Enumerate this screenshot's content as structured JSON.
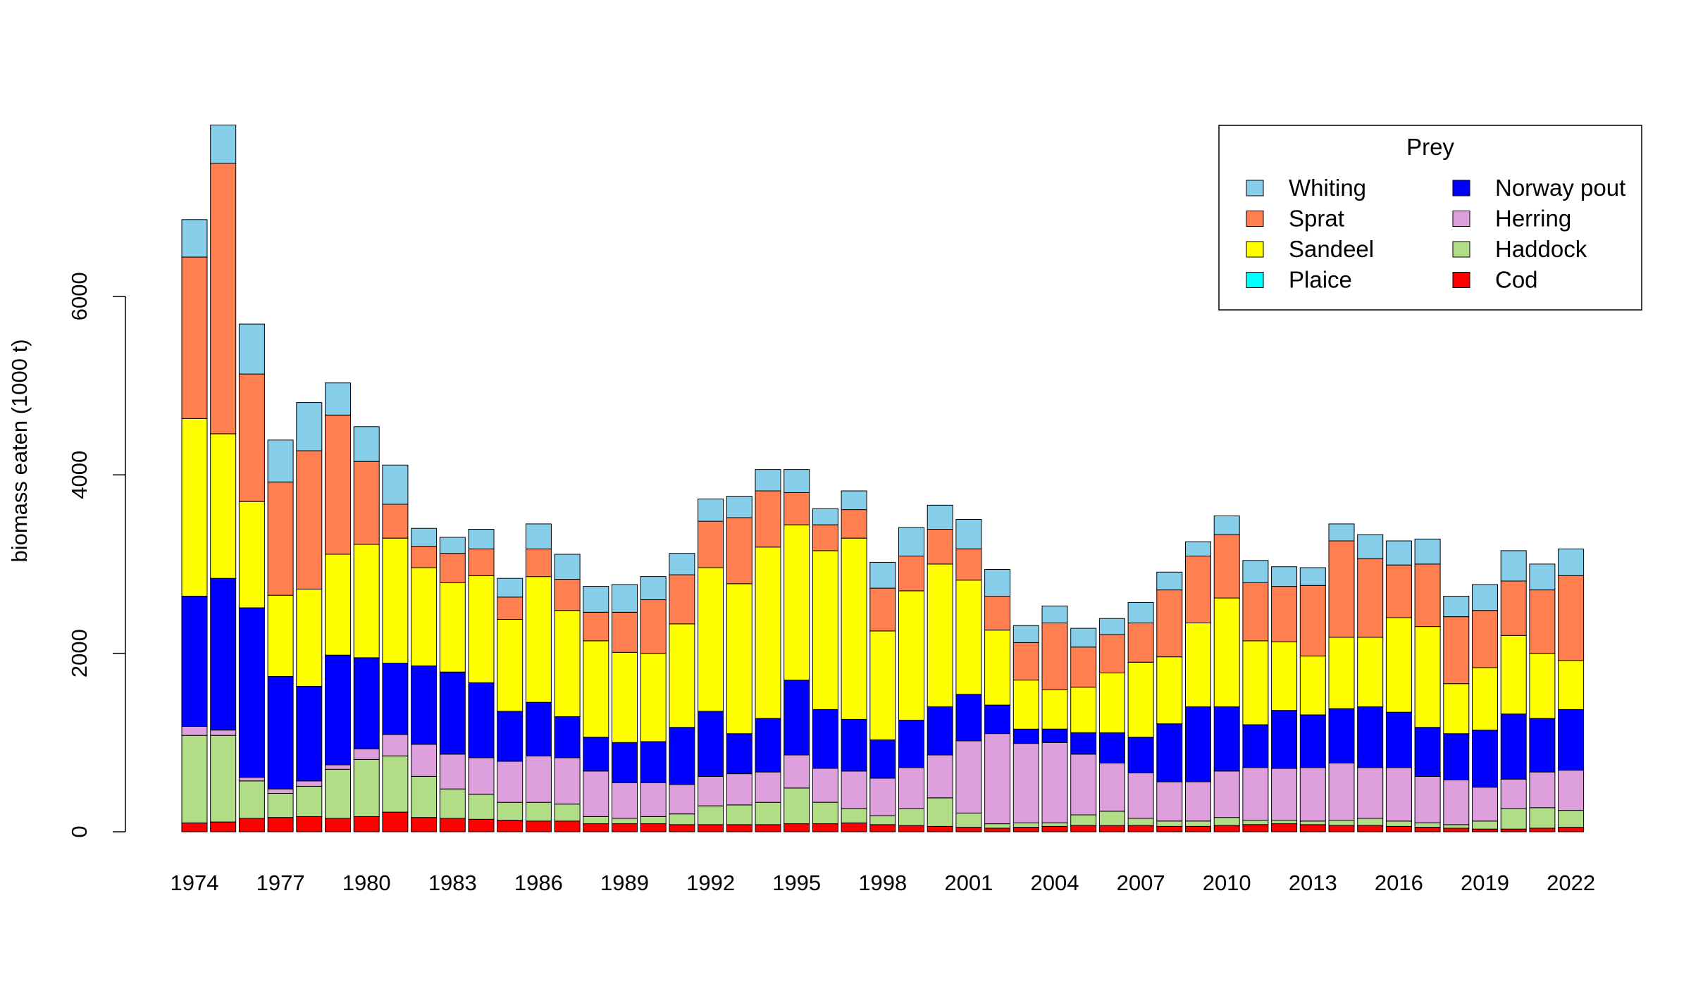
{
  "chart_data": {
    "type": "bar",
    "stacked": true,
    "ylabel": "biomass eaten (1000 t)",
    "ylim": [
      0,
      8000
    ],
    "yticks": [
      0,
      2000,
      4000,
      6000
    ],
    "legend": {
      "title": "Prey",
      "position": "top-right",
      "columns": 2
    },
    "x": [
      1974,
      1975,
      1976,
      1977,
      1978,
      1979,
      1980,
      1981,
      1982,
      1983,
      1984,
      1985,
      1986,
      1987,
      1988,
      1989,
      1990,
      1991,
      1992,
      1993,
      1994,
      1995,
      1996,
      1997,
      1998,
      1999,
      2000,
      2001,
      2002,
      2003,
      2004,
      2005,
      2006,
      2007,
      2008,
      2009,
      2010,
      2011,
      2012,
      2013,
      2014,
      2015,
      2016,
      2017,
      2018,
      2019,
      2020,
      2021,
      2022
    ],
    "xticks_shown": [
      1974,
      1977,
      1980,
      1983,
      1986,
      1989,
      1992,
      1995,
      1998,
      2001,
      2004,
      2007,
      2010,
      2013,
      2016,
      2019,
      2022
    ],
    "series": [
      {
        "name": "Cod",
        "color": "#ff0000",
        "values": [
          100,
          110,
          150,
          160,
          170,
          150,
          170,
          220,
          160,
          150,
          140,
          130,
          120,
          120,
          90,
          90,
          90,
          80,
          80,
          80,
          80,
          90,
          90,
          100,
          80,
          70,
          60,
          50,
          40,
          50,
          60,
          70,
          70,
          70,
          60,
          60,
          70,
          80,
          90,
          80,
          70,
          70,
          60,
          50,
          40,
          30,
          30,
          40,
          50
        ]
      },
      {
        "name": "Haddock",
        "color": "#b0dd86",
        "values": [
          980,
          970,
          420,
          270,
          340,
          550,
          640,
          630,
          460,
          330,
          280,
          200,
          210,
          190,
          80,
          60,
          80,
          120,
          210,
          220,
          250,
          400,
          240,
          160,
          100,
          190,
          320,
          160,
          50,
          50,
          40,
          120,
          160,
          80,
          60,
          60,
          90,
          50,
          40,
          40,
          60,
          80,
          60,
          50,
          40,
          90,
          230,
          230,
          190
        ]
      },
      {
        "name": "Plaice",
        "color": "#00ffff",
        "values": [
          0,
          0,
          0,
          0,
          0,
          0,
          0,
          0,
          0,
          0,
          0,
          0,
          0,
          0,
          0,
          0,
          0,
          0,
          0,
          0,
          0,
          0,
          0,
          0,
          0,
          0,
          0,
          0,
          0,
          0,
          0,
          0,
          0,
          0,
          0,
          0,
          0,
          0,
          0,
          0,
          0,
          0,
          0,
          0,
          0,
          0,
          0,
          0,
          0
        ]
      },
      {
        "name": "Herring",
        "color": "#dda0dd",
        "values": [
          100,
          60,
          40,
          50,
          60,
          50,
          120,
          240,
          360,
          390,
          410,
          460,
          520,
          520,
          510,
          400,
          380,
          330,
          330,
          350,
          340,
          370,
          380,
          420,
          420,
          460,
          480,
          810,
          1010,
          890,
          900,
          680,
          540,
          510,
          440,
          440,
          520,
          590,
          580,
          600,
          640,
          570,
          600,
          520,
          500,
          380,
          330,
          400,
          450
        ]
      },
      {
        "name": "Norway pout",
        "color": "#0000ff",
        "values": [
          1460,
          1700,
          1900,
          1260,
          1060,
          1230,
          1020,
          800,
          880,
          920,
          840,
          560,
          600,
          460,
          380,
          450,
          460,
          640,
          730,
          450,
          600,
          840,
          660,
          580,
          430,
          530,
          540,
          520,
          320,
          160,
          150,
          240,
          340,
          400,
          650,
          840,
          720,
          480,
          650,
          590,
          610,
          680,
          620,
          550,
          520,
          640,
          730,
          600,
          680
        ]
      },
      {
        "name": "Sandeel",
        "color": "#ffff00",
        "values": [
          1990,
          1620,
          1190,
          910,
          1090,
          1130,
          1270,
          1400,
          1100,
          1000,
          1200,
          1030,
          1410,
          1190,
          1080,
          1010,
          990,
          1160,
          1610,
          1680,
          1920,
          1740,
          1780,
          2030,
          1220,
          1450,
          1600,
          1280,
          840,
          550,
          440,
          510,
          670,
          840,
          750,
          940,
          1220,
          940,
          770,
          660,
          800,
          780,
          1060,
          1130,
          560,
          700,
          880,
          730,
          550
        ]
      },
      {
        "name": "Sprat",
        "color": "#ff7f50",
        "values": [
          1810,
          3030,
          1430,
          1270,
          1550,
          1560,
          930,
          380,
          240,
          330,
          300,
          250,
          310,
          350,
          320,
          450,
          600,
          550,
          520,
          740,
          630,
          360,
          290,
          320,
          480,
          390,
          390,
          350,
          380,
          420,
          750,
          450,
          430,
          440,
          750,
          750,
          710,
          650,
          620,
          790,
          1080,
          880,
          590,
          700,
          750,
          640,
          610,
          710,
          950
        ]
      },
      {
        "name": "Whiting",
        "color": "#87ceeb",
        "values": [
          420,
          430,
          560,
          470,
          540,
          360,
          390,
          440,
          200,
          180,
          220,
          210,
          280,
          280,
          290,
          310,
          260,
          240,
          250,
          240,
          240,
          260,
          180,
          210,
          290,
          320,
          270,
          330,
          300,
          190,
          190,
          210,
          180,
          230,
          200,
          160,
          210,
          250,
          220,
          200,
          190,
          270,
          270,
          280,
          230,
          290,
          340,
          290,
          300
        ]
      }
    ]
  }
}
